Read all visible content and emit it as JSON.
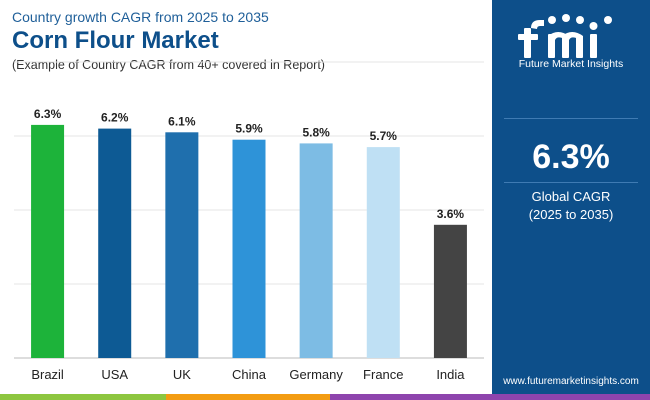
{
  "header": {
    "supertitle": "Country growth CAGR from 2025 to 2035",
    "title": "Corn Flour Market",
    "subtitle": "(Example of Country CAGR from 40+ covered in Report)"
  },
  "chart_data": {
    "type": "bar",
    "categories": [
      "Brazil",
      "USA",
      "UK",
      "China",
      "Germany",
      "France",
      "India"
    ],
    "values": [
      6.3,
      6.2,
      6.1,
      5.9,
      5.8,
      5.7,
      3.6
    ],
    "value_labels": [
      "6.3%",
      "6.2%",
      "6.1%",
      "5.9%",
      "5.8%",
      "5.7%",
      "3.6%"
    ],
    "colors": [
      "#1db33a",
      "#0d5a94",
      "#1f6fad",
      "#2e93d8",
      "#7dbce4",
      "#bfe0f4",
      "#444444"
    ],
    "ylim": [
      0,
      8
    ],
    "grid": true,
    "legend": "none"
  },
  "panel": {
    "logo_text": "Future Market Insights",
    "value": "6.3%",
    "label": "Global CAGR",
    "range": "(2025 to 2035)",
    "website": "www.futuremarketinsights.com"
  },
  "bottom_band_colors": [
    "#8dc63f",
    "#f39c12",
    "#8e44ad"
  ]
}
